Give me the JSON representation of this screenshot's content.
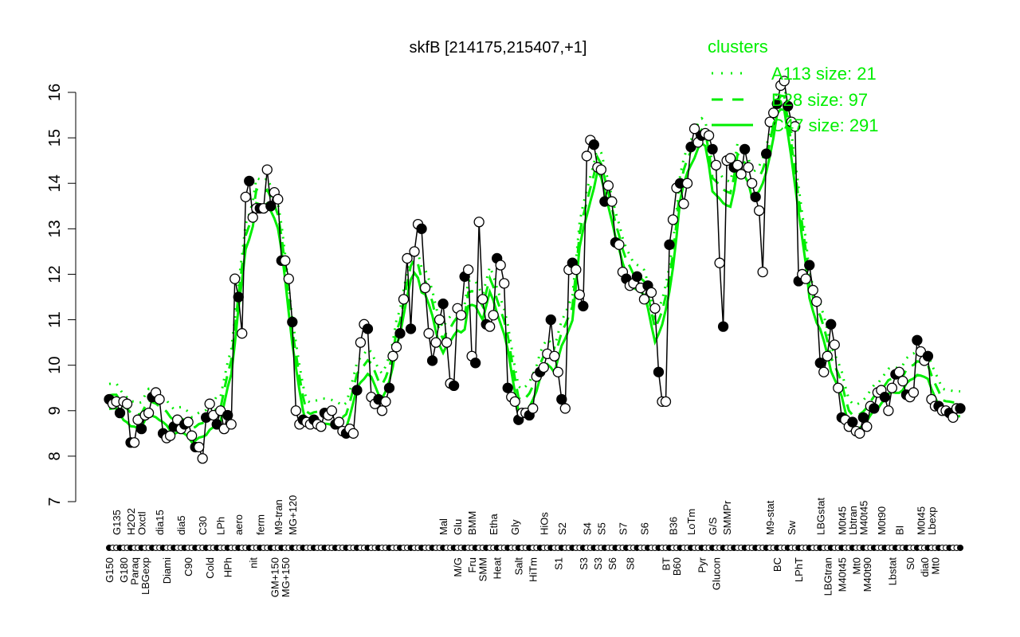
{
  "chart_data": {
    "type": "line",
    "title": "skfB [214175,215407,+1]",
    "xlabel": "",
    "ylabel": "",
    "ylim": [
      7,
      16
    ],
    "yticks": [
      7,
      8,
      9,
      10,
      11,
      12,
      13,
      14,
      15,
      16
    ],
    "grid": false,
    "legend": {
      "title": "clusters",
      "placement": "top-right",
      "entries": [
        {
          "label": "A113 size: 21",
          "style": "dotted"
        },
        {
          "label": "B28 size: 97",
          "style": "dashed"
        },
        {
          "label": "C47 size: 291",
          "style": "solid"
        }
      ]
    },
    "colors": {
      "data": "#000000",
      "clusters": "#00ee00"
    },
    "values": [
      9.25,
      9.15,
      9.2,
      8.95,
      9.2,
      9.15,
      8.3,
      8.3,
      8.8,
      8.6,
      8.9,
      8.95,
      9.3,
      9.4,
      9.25,
      8.5,
      8.4,
      8.45,
      8.65,
      8.8,
      8.6,
      8.7,
      8.75,
      8.45,
      8.2,
      8.2,
      7.95,
      8.85,
      9.15,
      8.9,
      8.7,
      9.0,
      8.6,
      8.9,
      8.7,
      11.9,
      11.5,
      10.7,
      13.7,
      14.05,
      13.25,
      13.45,
      13.45,
      13.45,
      14.3,
      13.5,
      13.8,
      13.65,
      12.3,
      12.3,
      11.9,
      10.95,
      9.0,
      8.7,
      8.8,
      8.75,
      8.7,
      8.8,
      8.7,
      8.65,
      8.95,
      8.9,
      9.0,
      8.7,
      8.75,
      8.55,
      8.5,
      8.6,
      8.5,
      9.45,
      10.5,
      10.9,
      10.8,
      9.3,
      9.15,
      9.25,
      9.0,
      9.2,
      9.5,
      10.2,
      10.4,
      10.7,
      11.45,
      12.35,
      10.8,
      12.5,
      13.1,
      13.0,
      11.7,
      10.7,
      10.1,
      10.5,
      11.0,
      11.35,
      10.5,
      9.6,
      9.55,
      11.25,
      11.1,
      11.95,
      12.1,
      10.2,
      10.05,
      13.15,
      11.45,
      10.9,
      10.85,
      11.1,
      12.35,
      12.2,
      11.8,
      9.5,
      9.3,
      9.2,
      8.8,
      8.95,
      8.95,
      8.9,
      9.05,
      9.75,
      9.85,
      9.95,
      10.25,
      11.0,
      10.2,
      9.85,
      9.25,
      9.05,
      12.1,
      12.25,
      12.1,
      11.55,
      11.3,
      14.6,
      14.95,
      14.85,
      14.35,
      14.3,
      13.6,
      13.95,
      13.6,
      12.7,
      12.65,
      12.05,
      11.9,
      11.75,
      11.8,
      11.95,
      11.7,
      11.45,
      11.75,
      11.6,
      11.25,
      9.85,
      9.2,
      9.2,
      12.65,
      13.2,
      13.9,
      14.0,
      13.55,
      14.0,
      14.8,
      15.2,
      14.9,
      15.05,
      15.1,
      15.05,
      14.75,
      14.4,
      12.25,
      10.85,
      14.5,
      14.55,
      14.35,
      14.4,
      14.2,
      14.75,
      14.35,
      14.0,
      13.7,
      13.4,
      12.05,
      14.65,
      15.35,
      15.55,
      15.75,
      16.15,
      16.25,
      15.7,
      15.35,
      15.25,
      11.85,
      12.0,
      11.9,
      12.2,
      11.65,
      11.4,
      10.05,
      9.85,
      10.2,
      10.9,
      10.45,
      9.5,
      8.85,
      8.8,
      8.65,
      8.75,
      8.55,
      8.5,
      8.85,
      8.65,
      9.1,
      9.05,
      9.4,
      9.45,
      9.3,
      9.0,
      9.5,
      9.8,
      9.85,
      9.65,
      9.35,
      9.3,
      9.4,
      10.55,
      10.3,
      10.1,
      10.2,
      9.25,
      9.1,
      9.1,
      9.0,
      9.0,
      8.95,
      8.85,
      9.05,
      9.05
    ],
    "x_labels_lower": [
      {
        "i": 0,
        "t": "G150"
      },
      {
        "i": 4,
        "t": "G180"
      },
      {
        "i": 7,
        "t": "Paraq"
      },
      {
        "i": 10,
        "t": "LBGexp"
      },
      {
        "i": 16,
        "t": "Diami"
      },
      {
        "i": 22,
        "t": "C90"
      },
      {
        "i": 28,
        "t": "Cold"
      },
      {
        "i": 33,
        "t": "HPh"
      },
      {
        "i": 40,
        "t": "nit"
      },
      {
        "i": 46,
        "t": "GM+150"
      },
      {
        "i": 49,
        "t": "MG+150"
      },
      {
        "i": 97,
        "t": "M/G"
      },
      {
        "i": 101,
        "t": "Fru"
      },
      {
        "i": 104,
        "t": "SMM"
      },
      {
        "i": 108,
        "t": "Heat"
      },
      {
        "i": 114,
        "t": "Salt"
      },
      {
        "i": 118,
        "t": "HiTm"
      },
      {
        "i": 125,
        "t": "S1"
      },
      {
        "i": 132,
        "t": "S3"
      },
      {
        "i": 136,
        "t": "S3"
      },
      {
        "i": 140,
        "t": "S6"
      },
      {
        "i": 145,
        "t": "S8"
      },
      {
        "i": 155,
        "t": "BT"
      },
      {
        "i": 158,
        "t": "B60"
      },
      {
        "i": 165,
        "t": "Pyr"
      },
      {
        "i": 169,
        "t": "Glucon"
      },
      {
        "i": 186,
        "t": "BC"
      },
      {
        "i": 192,
        "t": "LPhT"
      },
      {
        "i": 200,
        "t": "LBGtran"
      },
      {
        "i": 204,
        "t": "M40t45"
      },
      {
        "i": 208,
        "t": "Mt0"
      },
      {
        "i": 211,
        "t": "M40t90"
      },
      {
        "i": 218,
        "t": "Lbstat"
      },
      {
        "i": 223,
        "t": "S0"
      },
      {
        "i": 227,
        "t": "dia0"
      },
      {
        "i": 230,
        "t": "Mt0"
      }
    ],
    "x_labels_upper": [
      {
        "i": 2,
        "t": "G135"
      },
      {
        "i": 6,
        "t": "H2O2"
      },
      {
        "i": 9,
        "t": "Oxctl"
      },
      {
        "i": 14,
        "t": "dia15"
      },
      {
        "i": 20,
        "t": "dia5"
      },
      {
        "i": 26,
        "t": "C30"
      },
      {
        "i": 31,
        "t": "LPh"
      },
      {
        "i": 36,
        "t": "aero"
      },
      {
        "i": 42,
        "t": "ferm"
      },
      {
        "i": 47,
        "t": "M9-tran"
      },
      {
        "i": 51,
        "t": "MG+120"
      },
      {
        "i": 93,
        "t": "Mal"
      },
      {
        "i": 97,
        "t": "Glu"
      },
      {
        "i": 101,
        "t": "BMM"
      },
      {
        "i": 107,
        "t": "Etha"
      },
      {
        "i": 113,
        "t": "Gly"
      },
      {
        "i": 121,
        "t": "HiOs"
      },
      {
        "i": 126,
        "t": "S2"
      },
      {
        "i": 133,
        "t": "S4"
      },
      {
        "i": 137,
        "t": "S5"
      },
      {
        "i": 143,
        "t": "S7"
      },
      {
        "i": 149,
        "t": "S6"
      },
      {
        "i": 157,
        "t": "B36"
      },
      {
        "i": 162,
        "t": "LoTm"
      },
      {
        "i": 168,
        "t": "G/S"
      },
      {
        "i": 172,
        "t": "SMMPr"
      },
      {
        "i": 184,
        "t": "M9-stat"
      },
      {
        "i": 190,
        "t": "Sw"
      },
      {
        "i": 198,
        "t": "LBGstat"
      },
      {
        "i": 204,
        "t": "M0t45"
      },
      {
        "i": 207,
        "t": "Lbtran"
      },
      {
        "i": 210,
        "t": "M40t45"
      },
      {
        "i": 215,
        "t": "M0t90"
      },
      {
        "i": 220,
        "t": "BI"
      },
      {
        "i": 226,
        "t": "M0t45"
      },
      {
        "i": 229,
        "t": "Lbexp"
      }
    ]
  }
}
